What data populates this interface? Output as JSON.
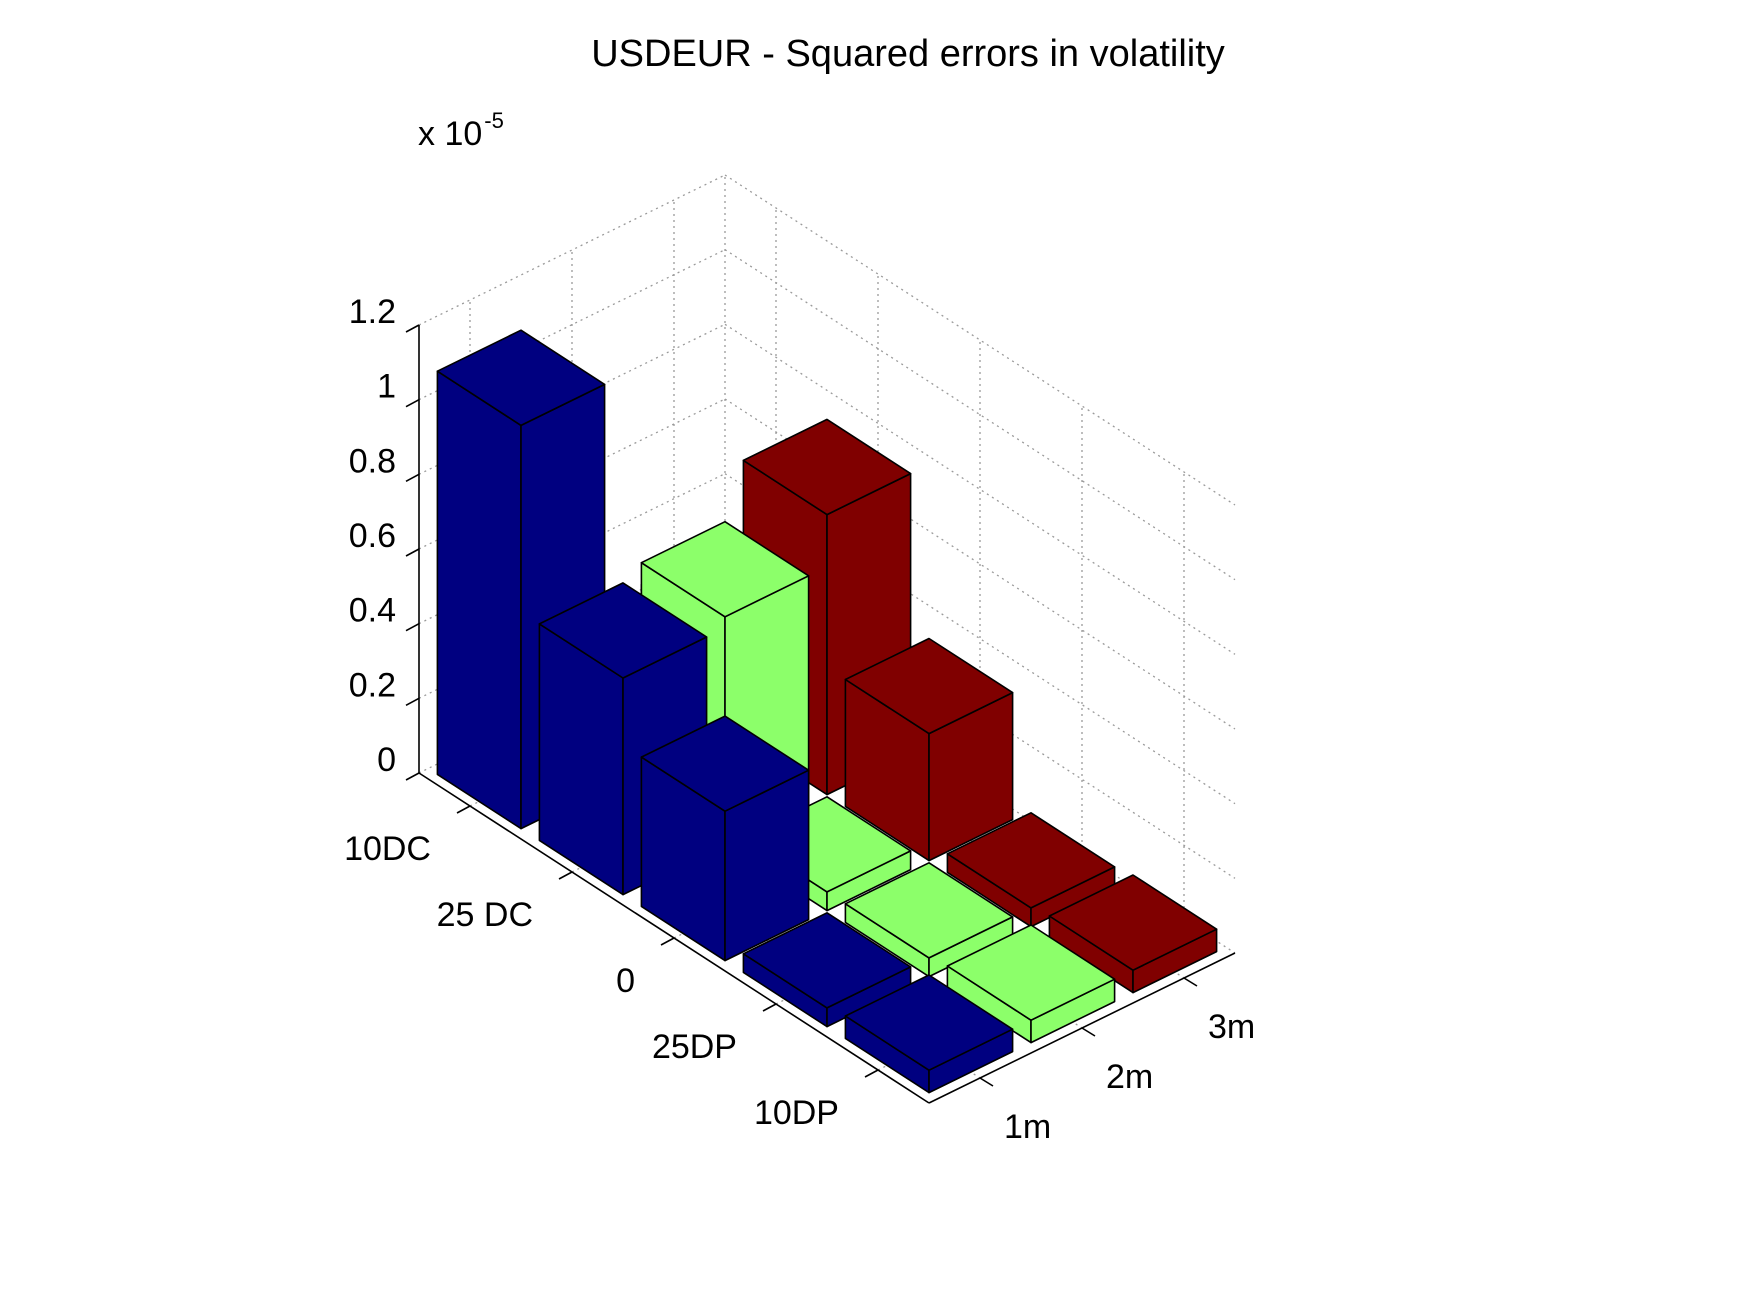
{
  "chart_data": {
    "type": "bar3d",
    "title": "USDEUR - Squared errors in volatility",
    "z_multiplier": {
      "base": "x 10",
      "exponent": "-5"
    },
    "z_ticks": [
      "0",
      "0.2",
      "0.4",
      "0.6",
      "0.8",
      "1",
      "1.2"
    ],
    "zlim": [
      0,
      1.2
    ],
    "strike_labels": [
      "10DC",
      "25 DC",
      "0",
      "25DP",
      "10DP"
    ],
    "maturity_labels": [
      "1m",
      "2m",
      "3m"
    ],
    "grid": true,
    "series": [
      {
        "maturity": "1m",
        "color": "#000080",
        "values": [
          1.08,
          0.58,
          0.4,
          0.05,
          0.06
        ]
      },
      {
        "maturity": "2m",
        "color": "#8cff6a",
        "values": [
          0.06,
          0.61,
          0.05,
          0.05,
          0.06
        ]
      },
      {
        "maturity": "3m",
        "color": "#800000",
        "values": [
          0.24,
          0.75,
          0.34,
          0.05,
          0.06
        ]
      }
    ]
  }
}
